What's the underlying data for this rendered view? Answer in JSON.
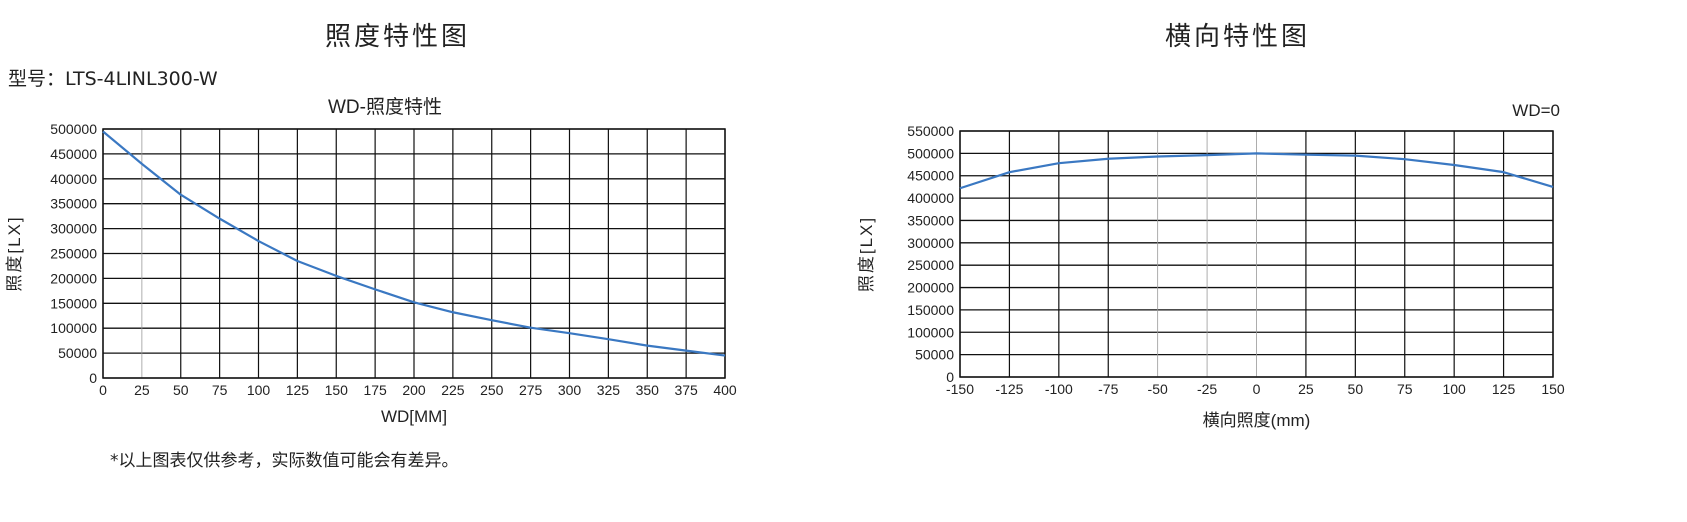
{
  "left": {
    "heading": "照度特性图",
    "model": "型号：LTS-4LINL300-W",
    "footnote": "*以上图表仅供参考，实际数值可能会有差异。"
  },
  "right": {
    "heading": "横向特性图"
  },
  "chart_data": [
    {
      "type": "line",
      "title": "WD-照度特性",
      "xlabel": "WD[MM]",
      "ylabel": "照度[LX]",
      "xlim": [
        0,
        400
      ],
      "ylim": [
        0,
        500000
      ],
      "xticks": [
        0,
        25,
        50,
        75,
        100,
        125,
        150,
        175,
        200,
        225,
        250,
        275,
        300,
        325,
        350,
        375,
        400
      ],
      "yticks": [
        0,
        50000,
        100000,
        150000,
        200000,
        250000,
        300000,
        350000,
        400000,
        450000,
        500000
      ],
      "grid": true,
      "color": "#3a78c2",
      "x": [
        0,
        25,
        50,
        75,
        100,
        125,
        150,
        175,
        200,
        225,
        250,
        275,
        300,
        325,
        350,
        375,
        400
      ],
      "y": [
        495000,
        430000,
        368000,
        320000,
        275000,
        235000,
        205000,
        178000,
        152000,
        132000,
        116000,
        101000,
        90000,
        78000,
        65000,
        55000,
        45000
      ]
    },
    {
      "type": "line",
      "annotation": "WD=0",
      "xlabel": "横向照度(mm)",
      "ylabel": "照度[LX]",
      "xlim": [
        -150,
        150
      ],
      "ylim": [
        0,
        550000
      ],
      "xticks": [
        -150,
        -125,
        -100,
        -75,
        -50,
        -25,
        0,
        25,
        50,
        75,
        100,
        125,
        150
      ],
      "yticks": [
        0,
        50000,
        100000,
        150000,
        200000,
        250000,
        300000,
        350000,
        400000,
        450000,
        500000,
        550000
      ],
      "grid": true,
      "color": "#3a78c2",
      "x": [
        -150,
        -125,
        -100,
        -75,
        -50,
        -25,
        0,
        25,
        50,
        75,
        100,
        125,
        150
      ],
      "y": [
        422000,
        458000,
        478000,
        488000,
        493000,
        496000,
        500000,
        497000,
        495000,
        487000,
        474000,
        458000,
        425000
      ]
    }
  ]
}
